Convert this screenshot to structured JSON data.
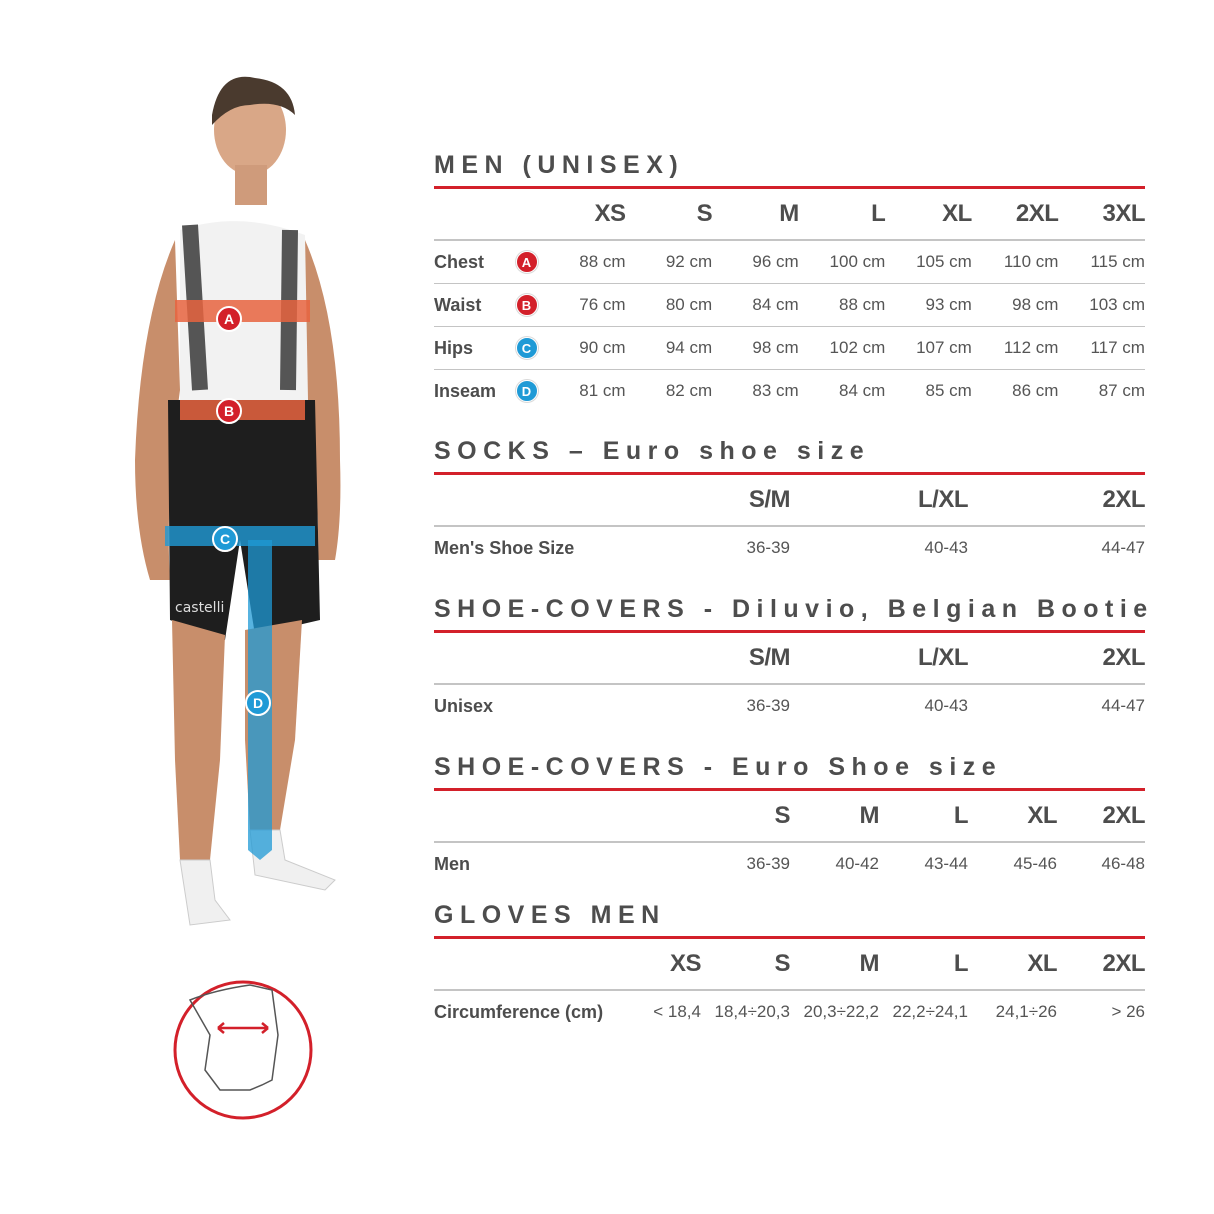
{
  "colors": {
    "accent_red": "#d3202a",
    "badge_red": "#d3202a",
    "badge_blue": "#1f9ad6",
    "text": "#4d4d4d",
    "rule": "#c4c4c4"
  },
  "figure": {
    "band_labels": [
      "A",
      "B",
      "C",
      "D"
    ],
    "logo_text": "castelli",
    "glove_icon": "hand-circumference-icon"
  },
  "men": {
    "title": "MEN (UNISEX)",
    "sizes": [
      "XS",
      "S",
      "M",
      "L",
      "XL",
      "2XL",
      "3XL"
    ],
    "rows": [
      {
        "label": "Chest",
        "badge": "A",
        "badge_color": "#d3202a",
        "values": [
          "88 cm",
          "92 cm",
          "96 cm",
          "100 cm",
          "105 cm",
          "110 cm",
          "115 cm"
        ]
      },
      {
        "label": "Waist",
        "badge": "B",
        "badge_color": "#d3202a",
        "values": [
          "76 cm",
          "80 cm",
          "84 cm",
          "88 cm",
          "93 cm",
          "98 cm",
          "103 cm"
        ]
      },
      {
        "label": "Hips",
        "badge": "C",
        "badge_color": "#1f9ad6",
        "values": [
          "90 cm",
          "94 cm",
          "98 cm",
          "102 cm",
          "107 cm",
          "112 cm",
          "117 cm"
        ]
      },
      {
        "label": "Inseam",
        "badge": "D",
        "badge_color": "#1f9ad6",
        "values": [
          "81 cm",
          "82 cm",
          "83 cm",
          "84 cm",
          "85 cm",
          "86 cm",
          "87 cm"
        ]
      }
    ]
  },
  "socks": {
    "title": "SOCKS – Euro shoe size",
    "sizes": [
      "S/M",
      "L/XL",
      "2XL"
    ],
    "rows": [
      {
        "label": "Men's Shoe Size",
        "values": [
          "36-39",
          "40-43",
          "44-47"
        ]
      }
    ]
  },
  "shoecovers_diluvio": {
    "title": "SHOE-COVERS - Diluvio, Belgian Bootie",
    "sizes": [
      "S/M",
      "L/XL",
      "2XL"
    ],
    "rows": [
      {
        "label": "Unisex",
        "values": [
          "36-39",
          "40-43",
          "44-47"
        ]
      }
    ]
  },
  "shoecovers_euro": {
    "title": "SHOE-COVERS - Euro Shoe size",
    "sizes": [
      "S",
      "M",
      "L",
      "XL",
      "2XL"
    ],
    "rows": [
      {
        "label": "Men",
        "values": [
          "36-39",
          "40-42",
          "43-44",
          "45-46",
          "46-48"
        ]
      }
    ]
  },
  "gloves": {
    "title": "GLOVES MEN",
    "sizes": [
      "XS",
      "S",
      "M",
      "L",
      "XL",
      "2XL"
    ],
    "rows": [
      {
        "label": "Circumference (cm)",
        "values": [
          "< 18,4",
          "18,4÷20,3",
          "20,3÷22,2",
          "22,2÷24,1",
          "24,1÷26",
          "> 26"
        ]
      }
    ]
  }
}
